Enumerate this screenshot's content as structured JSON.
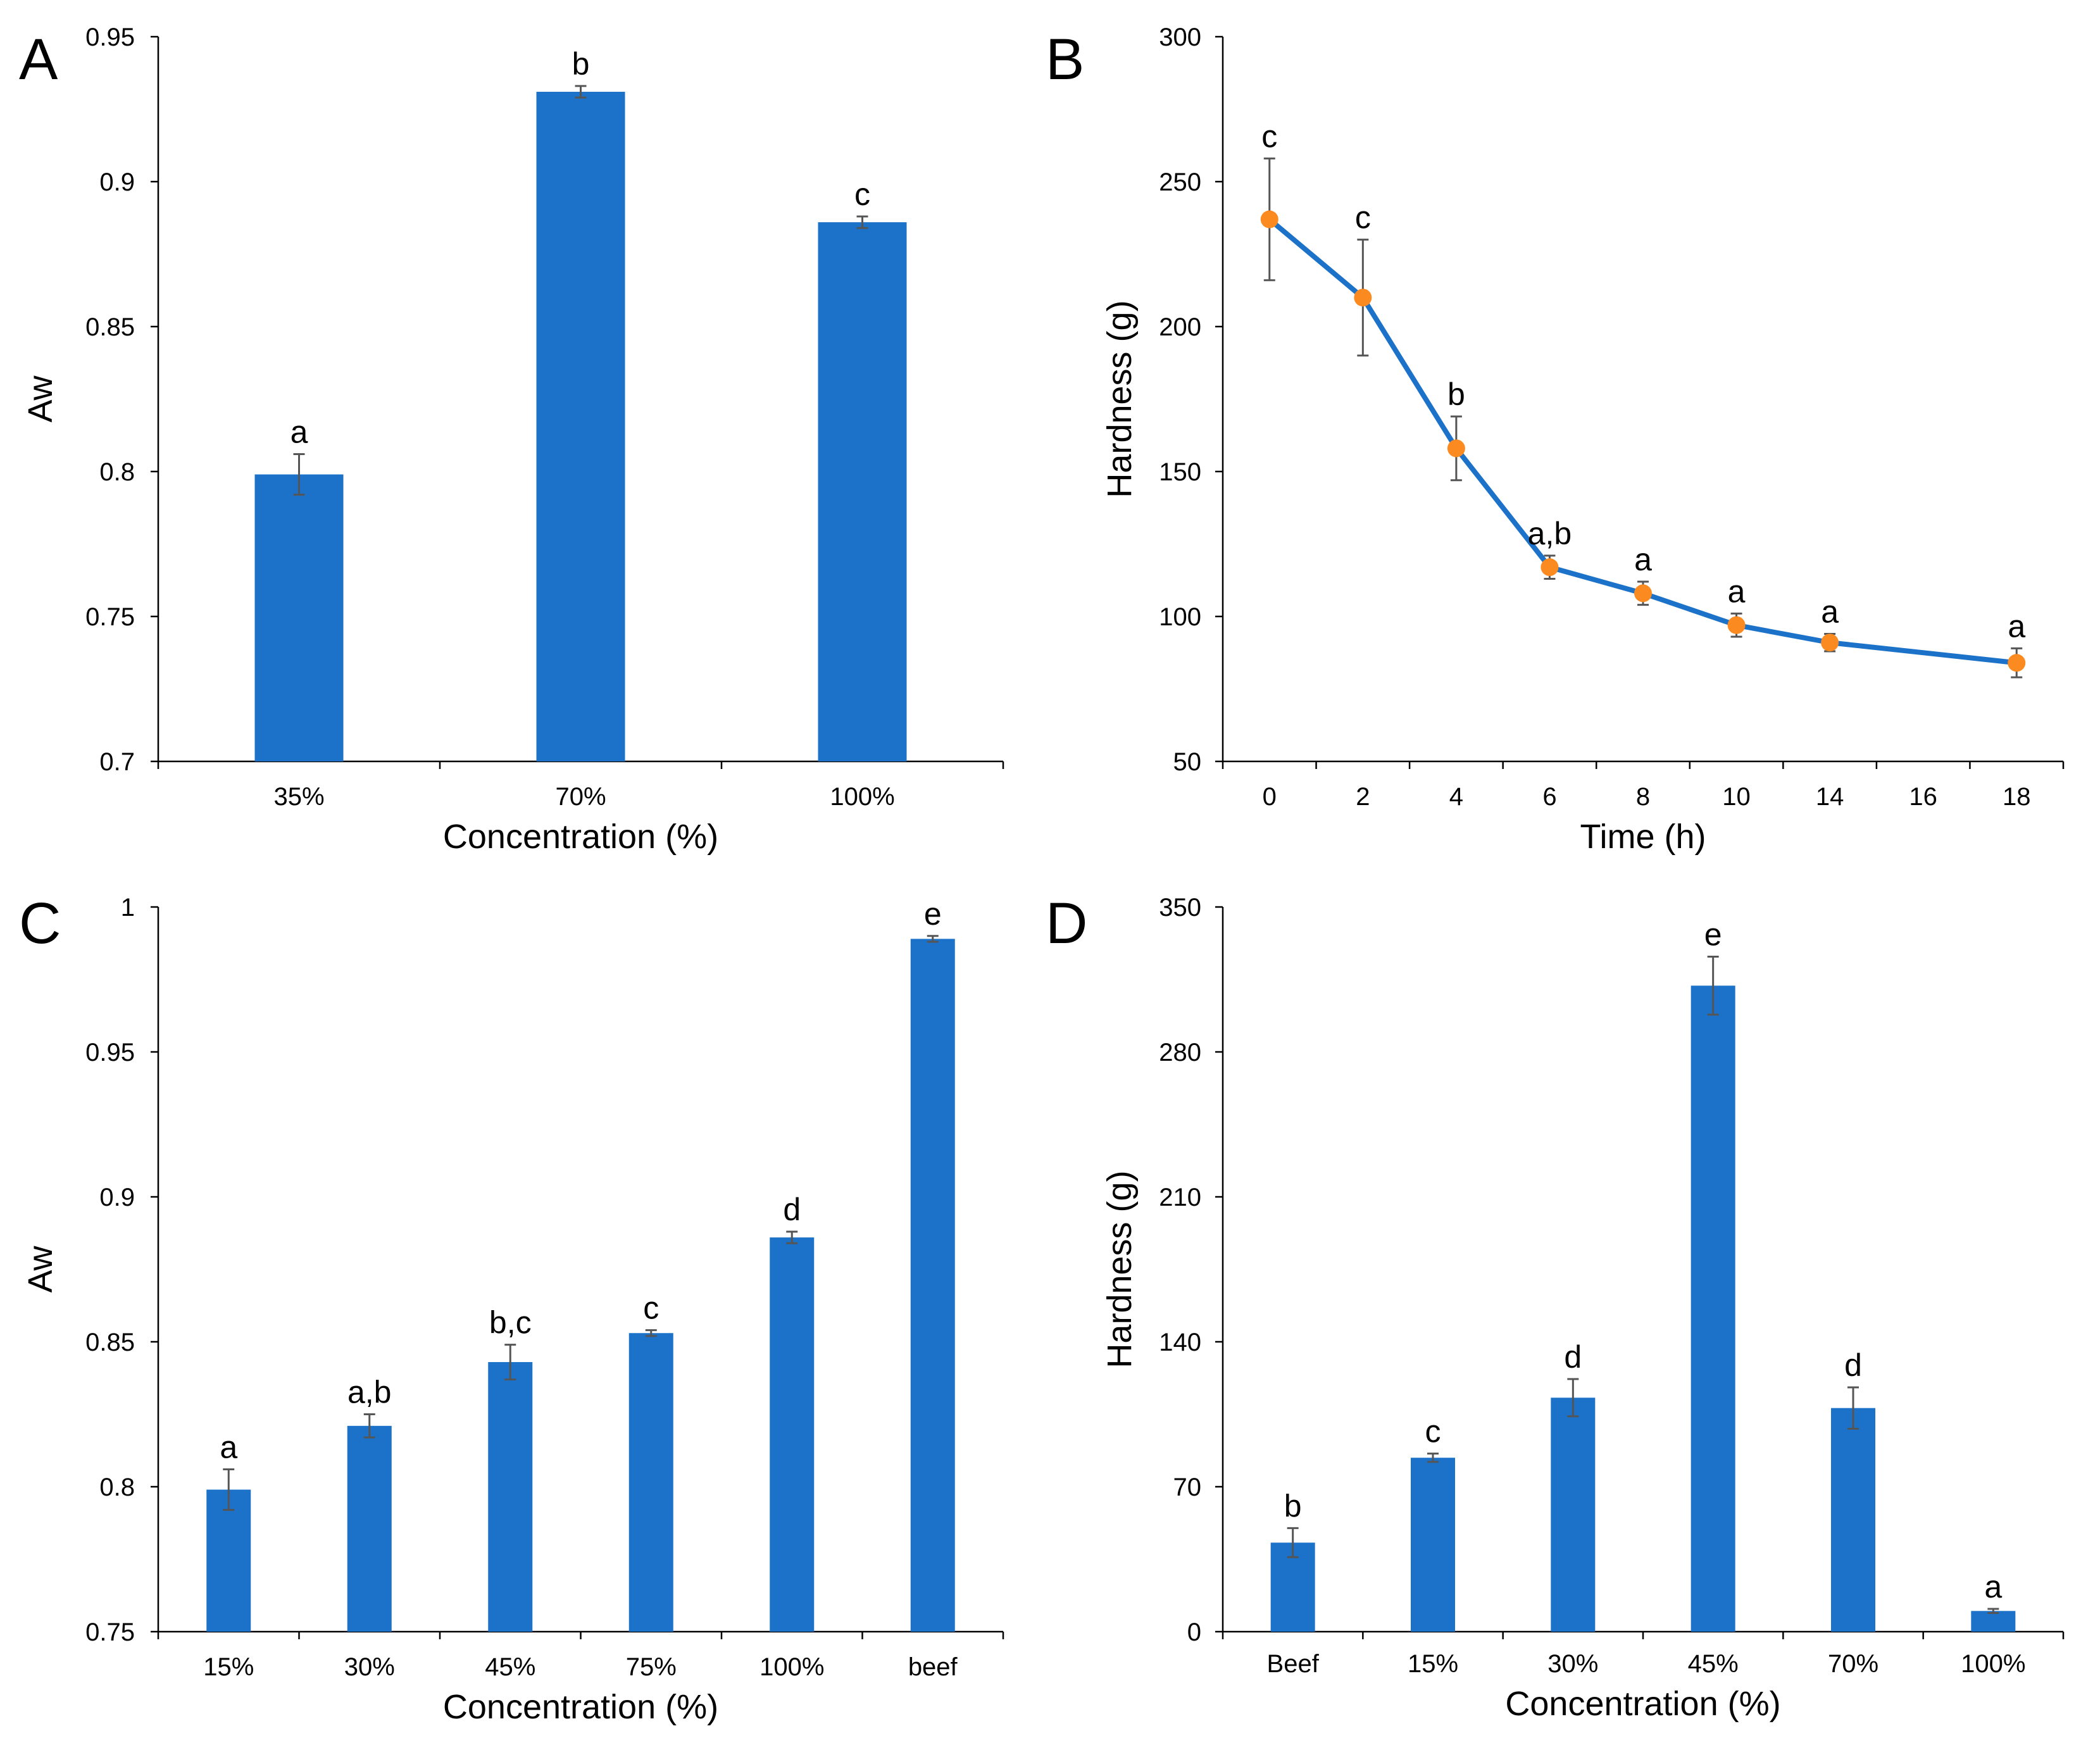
{
  "colors": {
    "bar": "#1b72c8",
    "line": "#1b72c8",
    "marker": "#fb8a21"
  },
  "chart_data": [
    {
      "panel": "A",
      "type": "bar",
      "categories": [
        "35%",
        "70%",
        "100%"
      ],
      "values": [
        0.799,
        0.931,
        0.886
      ],
      "errors": [
        0.007,
        0.002,
        0.002
      ],
      "significance": [
        "a",
        "b",
        "c"
      ],
      "xlabel": "Concentration (%)",
      "ylabel": "Aw",
      "ylim": [
        0.7,
        0.95
      ],
      "yticks": [
        0.7,
        0.75,
        0.8,
        0.85,
        0.9,
        0.95
      ],
      "ytick_labels": [
        "0.7",
        "0.75",
        "0.8",
        "0.85",
        "0.9",
        "0.95"
      ]
    },
    {
      "panel": "B",
      "type": "line",
      "x": [
        0,
        2,
        4,
        6,
        8,
        10,
        14,
        18
      ],
      "values": [
        237,
        210,
        158,
        117,
        108,
        97,
        91,
        84
      ],
      "errors": [
        21,
        20,
        11,
        4,
        4,
        4,
        3,
        5
      ],
      "significance": [
        "c",
        "c",
        "b",
        "a,b",
        "a",
        "a",
        "a",
        "a"
      ],
      "xlabel": "Time (h)",
      "ylabel": "Hardness (g)",
      "ylim": [
        50,
        300
      ],
      "yticks": [
        50,
        100,
        150,
        200,
        250,
        300
      ],
      "ytick_labels": [
        "50",
        "100",
        "150",
        "200",
        "250",
        "300"
      ],
      "xtick_labels": [
        "0",
        "2",
        "4",
        "6",
        "8",
        "10",
        "14",
        "16",
        "18"
      ]
    },
    {
      "panel": "C",
      "type": "bar",
      "categories": [
        "15%",
        "30%",
        "45%",
        "75%",
        "100%",
        "beef"
      ],
      "values": [
        0.799,
        0.821,
        0.843,
        0.853,
        0.886,
        0.989
      ],
      "errors": [
        0.007,
        0.004,
        0.006,
        0.001,
        0.002,
        0.001
      ],
      "significance": [
        "a",
        "a,b",
        "b,c",
        "c",
        "d",
        "e"
      ],
      "xlabel": "Concentration (%)",
      "ylabel": "Aw",
      "ylim": [
        0.75,
        1
      ],
      "yticks": [
        0.75,
        0.8,
        0.85,
        0.9,
        0.95,
        1
      ],
      "ytick_labels": [
        "0.75",
        "0.8",
        "0.85",
        "0.9",
        "0.95",
        "1"
      ]
    },
    {
      "panel": "D",
      "type": "bar",
      "categories": [
        "Beef",
        "15%",
        "30%",
        "45%",
        "70%",
        "100%"
      ],
      "values": [
        43,
        84,
        113,
        312,
        108,
        10
      ],
      "errors": [
        7,
        2,
        9,
        14,
        10,
        1
      ],
      "significance": [
        "b",
        "c",
        "d",
        "e",
        "d",
        "a"
      ],
      "xlabel": "Concentration (%)",
      "ylabel": "Hardness (g)",
      "ylim": [
        0,
        350
      ],
      "yticks": [
        0,
        70,
        140,
        210,
        280,
        350
      ],
      "ytick_labels": [
        "0",
        "70",
        "140",
        "210",
        "280",
        "350"
      ]
    }
  ]
}
